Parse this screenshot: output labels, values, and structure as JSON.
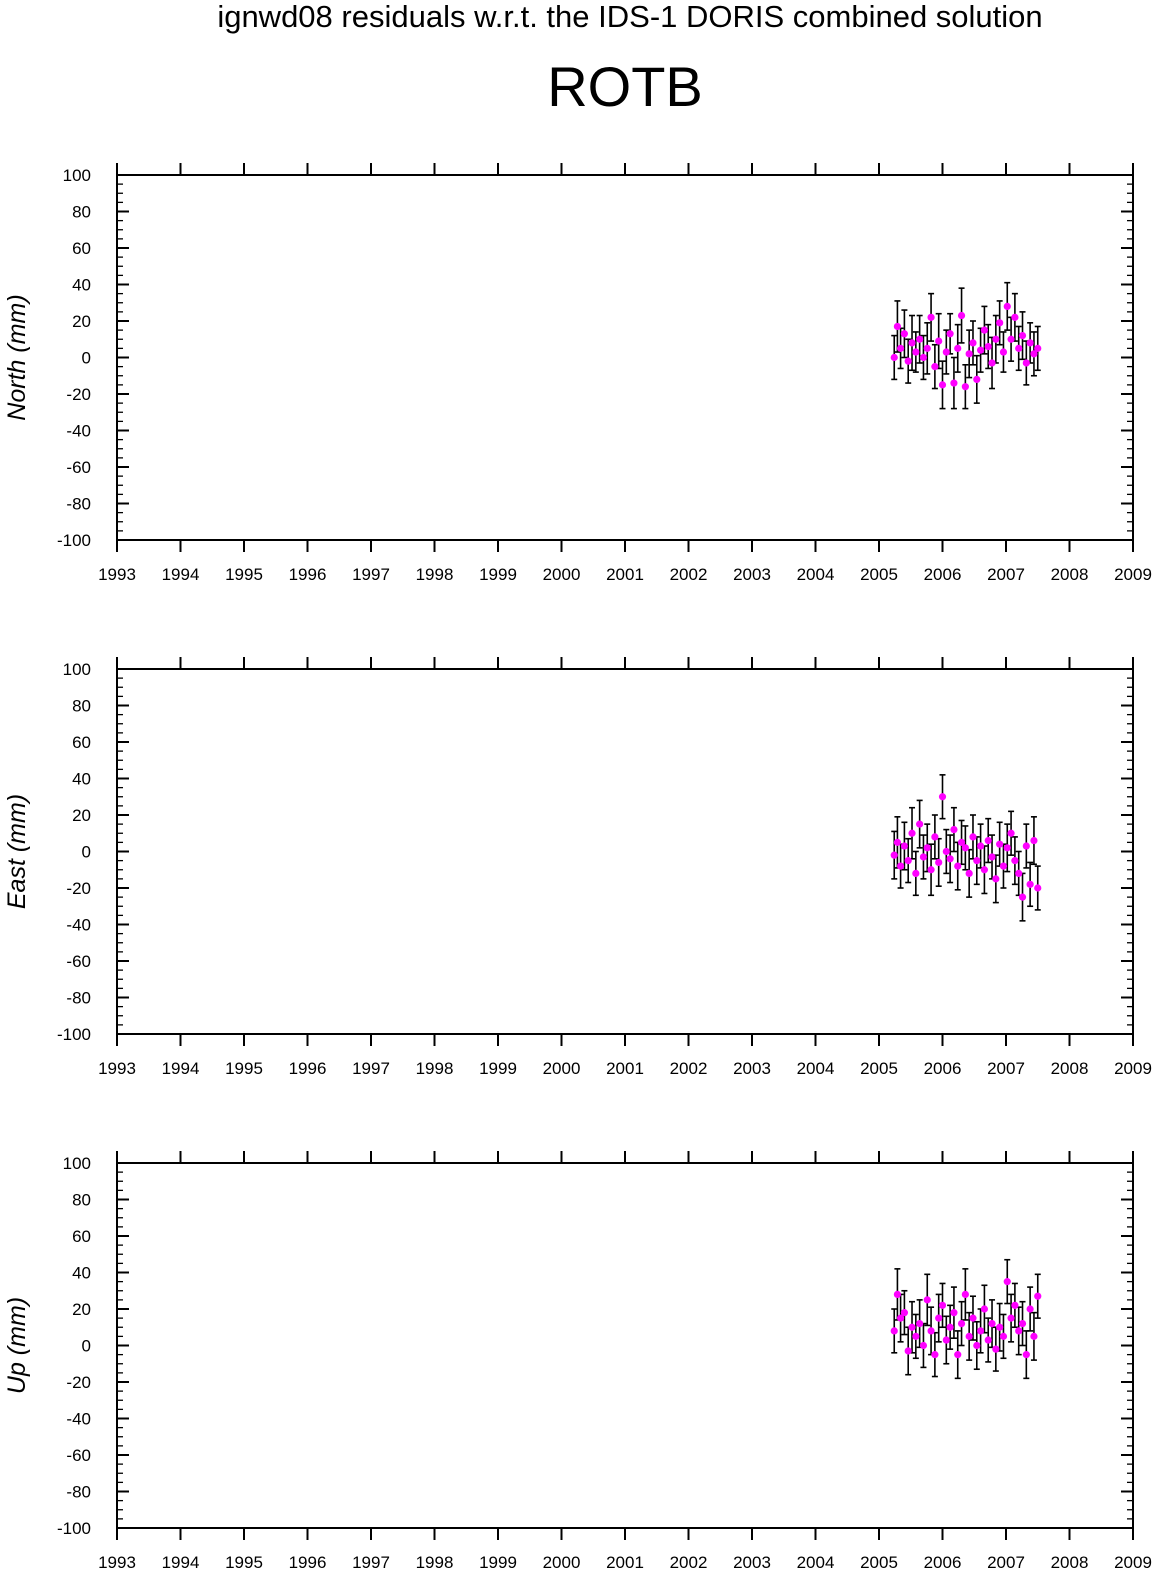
{
  "title": "ignwd08 residuals w.r.t. the IDS-1 DORIS combined solution",
  "subtitle": "ROTB",
  "colors": {
    "point": "#ff00ff",
    "errorbar": "#000000",
    "axis": "#000000"
  },
  "chart_data": [
    {
      "type": "scatter",
      "panel": "north",
      "ylabel": "North (mm)",
      "ylim": [
        -100,
        100
      ],
      "xlim": [
        1993,
        2009
      ],
      "yticks": [
        100,
        80,
        60,
        40,
        20,
        0,
        -20,
        -40,
        -60,
        -80,
        -100
      ],
      "xticks": [
        1993,
        1994,
        1995,
        1996,
        1997,
        1998,
        1999,
        2000,
        2001,
        2002,
        2003,
        2004,
        2005,
        2006,
        2007,
        2008,
        2009
      ],
      "error_bars": true,
      "series": [
        {
          "x": [
            2005.24,
            2005.29,
            2005.34,
            2005.4,
            2005.46,
            2005.52,
            2005.58,
            2005.64,
            2005.7,
            2005.76,
            2005.82,
            2005.88,
            2005.94,
            2006.0,
            2006.06,
            2006.12,
            2006.18,
            2006.24,
            2006.3,
            2006.36,
            2006.42,
            2006.48,
            2006.54,
            2006.6,
            2006.66,
            2006.72,
            2006.78,
            2006.84,
            2006.9,
            2006.96,
            2007.02,
            2007.08,
            2007.14,
            2007.2,
            2007.26,
            2007.32,
            2007.38,
            2007.44,
            2007.5
          ],
          "y": [
            0,
            17,
            5,
            13,
            -2,
            8,
            3,
            10,
            0,
            5,
            22,
            -5,
            9,
            -15,
            3,
            13,
            -14,
            5,
            23,
            -16,
            2,
            8,
            -12,
            4,
            15,
            6,
            -3,
            10,
            19,
            3,
            28,
            10,
            22,
            5,
            12,
            -3,
            8,
            2,
            5
          ],
          "err": [
            12,
            14,
            11,
            13,
            12,
            15,
            11,
            13,
            12,
            14,
            13,
            12,
            15,
            13,
            12,
            11,
            14,
            13,
            15,
            12,
            13,
            12,
            13,
            12,
            13,
            12,
            14,
            13,
            12,
            11,
            13,
            12,
            13,
            12,
            13,
            12,
            11,
            12,
            12
          ]
        }
      ]
    },
    {
      "type": "scatter",
      "panel": "east",
      "ylabel": "East (mm)",
      "ylim": [
        -100,
        100
      ],
      "xlim": [
        1993,
        2009
      ],
      "yticks": [
        100,
        80,
        60,
        40,
        20,
        0,
        -20,
        -40,
        -60,
        -80,
        -100
      ],
      "xticks": [
        1993,
        1994,
        1995,
        1996,
        1997,
        1998,
        1999,
        2000,
        2001,
        2002,
        2003,
        2004,
        2005,
        2006,
        2007,
        2008,
        2009
      ],
      "error_bars": true,
      "series": [
        {
          "x": [
            2005.24,
            2005.29,
            2005.34,
            2005.4,
            2005.46,
            2005.52,
            2005.58,
            2005.64,
            2005.7,
            2005.76,
            2005.82,
            2005.88,
            2005.94,
            2006.0,
            2006.06,
            2006.12,
            2006.18,
            2006.24,
            2006.3,
            2006.36,
            2006.42,
            2006.48,
            2006.54,
            2006.6,
            2006.66,
            2006.72,
            2006.78,
            2006.84,
            2006.9,
            2006.96,
            2007.02,
            2007.08,
            2007.14,
            2007.2,
            2007.26,
            2007.32,
            2007.38,
            2007.44,
            2007.5
          ],
          "y": [
            -2,
            5,
            -8,
            3,
            -5,
            10,
            -12,
            15,
            -3,
            2,
            -10,
            8,
            -6,
            30,
            0,
            -4,
            12,
            -8,
            5,
            2,
            -12,
            8,
            -5,
            3,
            -10,
            6,
            -3,
            -15,
            4,
            -8,
            2,
            10,
            -5,
            -12,
            -25,
            3,
            -18,
            6,
            -20
          ],
          "err": [
            13,
            14,
            12,
            13,
            12,
            14,
            12,
            13,
            12,
            13,
            14,
            12,
            13,
            12,
            12,
            13,
            12,
            13,
            12,
            12,
            13,
            12,
            13,
            12,
            13,
            12,
            12,
            13,
            12,
            12,
            13,
            12,
            13,
            12,
            13,
            12,
            12,
            13,
            12
          ]
        }
      ]
    },
    {
      "type": "scatter",
      "panel": "up",
      "ylabel": "Up (mm)",
      "ylim": [
        -100,
        100
      ],
      "xlim": [
        1993,
        2009
      ],
      "yticks": [
        100,
        80,
        60,
        40,
        20,
        0,
        -20,
        -40,
        -60,
        -80,
        -100
      ],
      "xticks": [
        1993,
        1994,
        1995,
        1996,
        1997,
        1998,
        1999,
        2000,
        2001,
        2002,
        2003,
        2004,
        2005,
        2006,
        2007,
        2008,
        2009
      ],
      "error_bars": true,
      "series": [
        {
          "x": [
            2005.24,
            2005.29,
            2005.34,
            2005.4,
            2005.46,
            2005.52,
            2005.58,
            2005.64,
            2005.7,
            2005.76,
            2005.82,
            2005.88,
            2005.94,
            2006.0,
            2006.06,
            2006.12,
            2006.18,
            2006.24,
            2006.3,
            2006.36,
            2006.42,
            2006.48,
            2006.54,
            2006.6,
            2006.66,
            2006.72,
            2006.78,
            2006.84,
            2006.9,
            2006.96,
            2007.02,
            2007.08,
            2007.14,
            2007.2,
            2007.26,
            2007.32,
            2007.38,
            2007.44,
            2007.5
          ],
          "y": [
            8,
            28,
            15,
            18,
            -3,
            10,
            5,
            12,
            0,
            25,
            8,
            -5,
            15,
            22,
            3,
            10,
            18,
            -5,
            12,
            28,
            5,
            15,
            0,
            8,
            20,
            3,
            12,
            -2,
            10,
            5,
            35,
            15,
            22,
            8,
            12,
            -5,
            20,
            5,
            27
          ],
          "err": [
            12,
            14,
            13,
            12,
            13,
            14,
            12,
            13,
            12,
            14,
            13,
            12,
            13,
            12,
            13,
            12,
            14,
            13,
            12,
            14,
            13,
            12,
            13,
            12,
            13,
            12,
            13,
            12,
            13,
            12,
            12,
            13,
            12,
            13,
            12,
            13,
            12,
            13,
            12
          ]
        }
      ]
    }
  ]
}
